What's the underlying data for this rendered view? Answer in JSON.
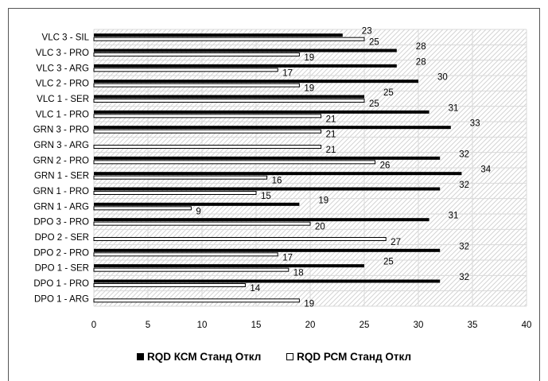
{
  "chart_data": {
    "type": "bar",
    "orientation": "horizontal",
    "categories": [
      "VLC 3 - SIL",
      "VLC 3 - PRO",
      "VLC 3 - ARG",
      "VLC 2 - PRO",
      "VLC 1 - SER",
      "VLC 1 - PRO",
      "GRN 3 - PRO",
      "GRN 3 - ARG",
      "GRN 2 - PRO",
      "GRN 1 - SER",
      "GRN 1 - PRO",
      "GRN 1 - ARG",
      "DPO 3 - PRO",
      "DPO 2 - SER",
      "DPO 2 - PRO",
      "DPO 1 - SER",
      "DPO 1 - PRO",
      "DPO 1 - ARG"
    ],
    "series": [
      {
        "name": "RQD КСМ Станд Откл",
        "color": "#000000",
        "values": [
          23,
          28,
          28,
          30,
          25,
          31,
          33,
          null,
          32,
          34,
          32,
          19,
          31,
          null,
          32,
          25,
          32,
          null
        ]
      },
      {
        "name": "RQD РСМ Станд Откл",
        "color": "#ffffff",
        "values": [
          25,
          19,
          17,
          19,
          25,
          21,
          21,
          21,
          26,
          16,
          15,
          9,
          20,
          27,
          17,
          18,
          14,
          19
        ]
      }
    ],
    "xlim": [
      0,
      40
    ],
    "xticks": [
      "0",
      "5",
      "10",
      "15",
      "20",
      "25",
      "30",
      "35",
      "40"
    ],
    "grid": true,
    "legend_position": "bottom"
  }
}
